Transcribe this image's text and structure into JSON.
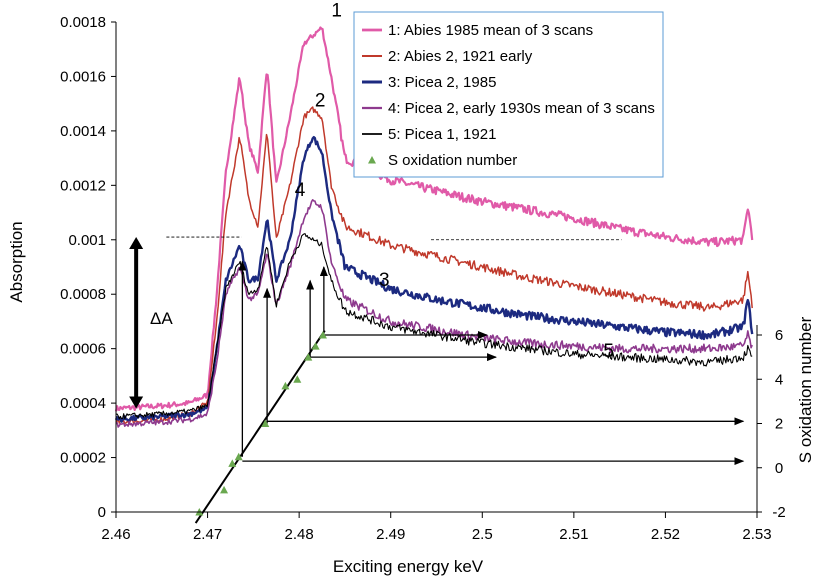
{
  "chart_data": {
    "type": "line",
    "xlabel": "Exciting energy keV",
    "ylabel": "Absorption",
    "y2label": "S oxidation number",
    "xlim": [
      2.46,
      2.53
    ],
    "ylim": [
      0,
      0.0018
    ],
    "y2lim": [
      -2,
      7
    ],
    "x_ticks": [
      "2.46",
      "2.47",
      "2.48",
      "2.49",
      "2.5",
      "2.51",
      "2.52",
      "2.53"
    ],
    "y_ticks": [
      "0",
      "0.0002",
      "0.0004",
      "0.0006",
      "0.0008",
      "0.001",
      "0.0012",
      "0.0014",
      "0.0016",
      "0.0018"
    ],
    "y2_ticks": [
      "-2",
      "0",
      "2",
      "4",
      "6"
    ],
    "legend_position": "top-right",
    "series": [
      {
        "name": "1: Abies 1985 mean of 3 scans",
        "label": "1",
        "color": "#e05aa8",
        "width": 2.2,
        "x": [
          2.46,
          2.465,
          2.468,
          2.47,
          2.471,
          2.472,
          2.4735,
          2.4745,
          2.4755,
          2.4765,
          2.4775,
          2.479,
          2.4805,
          2.4815,
          2.4825,
          2.4835,
          2.485,
          2.49,
          2.495,
          2.5,
          2.505,
          2.51,
          2.515,
          2.52,
          2.525,
          2.5285,
          2.529,
          2.5295
        ],
        "y": [
          0.00038,
          0.00039,
          0.0004,
          0.00043,
          0.0008,
          0.00125,
          0.0016,
          0.00135,
          0.00125,
          0.00164,
          0.0012,
          0.00145,
          0.00172,
          0.00175,
          0.00178,
          0.0016,
          0.0013,
          0.00122,
          0.00118,
          0.00114,
          0.00111,
          0.00108,
          0.00104,
          0.00101,
          0.00099,
          0.001,
          0.00112,
          0.00101
        ]
      },
      {
        "name": "2: Abies 2, 1921 early",
        "label": "2",
        "color": "#c0392b",
        "width": 1.5,
        "x": [
          2.46,
          2.465,
          2.468,
          2.47,
          2.471,
          2.472,
          2.4735,
          2.4745,
          2.4755,
          2.4765,
          2.4775,
          2.479,
          2.4805,
          2.4815,
          2.4825,
          2.4835,
          2.485,
          2.49,
          2.495,
          2.5,
          2.505,
          2.51,
          2.515,
          2.52,
          2.525,
          2.5285,
          2.529,
          2.5295
        ],
        "y": [
          0.00033,
          0.00034,
          0.00036,
          0.0004,
          0.0007,
          0.0011,
          0.00138,
          0.00115,
          0.00105,
          0.0014,
          0.001,
          0.0012,
          0.00145,
          0.00148,
          0.00145,
          0.0012,
          0.00105,
          0.00098,
          0.00094,
          0.0009,
          0.00086,
          0.00083,
          0.0008,
          0.00077,
          0.00075,
          0.00078,
          0.00088,
          0.00076
        ]
      },
      {
        "name": "3: Picea 2, 1985",
        "label": "3",
        "color": "#1c2a80",
        "width": 2.4,
        "x": [
          2.46,
          2.465,
          2.468,
          2.47,
          2.471,
          2.472,
          2.4735,
          2.4745,
          2.4755,
          2.4765,
          2.4775,
          2.479,
          2.4805,
          2.4815,
          2.4825,
          2.4835,
          2.485,
          2.49,
          2.495,
          2.5,
          2.505,
          2.51,
          2.515,
          2.52,
          2.525,
          2.5285,
          2.529,
          2.5295
        ],
        "y": [
          0.00034,
          0.00035,
          0.00036,
          0.00038,
          0.0006,
          0.00085,
          0.00098,
          0.00085,
          0.00086,
          0.00108,
          0.00085,
          0.001,
          0.0013,
          0.00138,
          0.00132,
          0.0011,
          0.0009,
          0.00082,
          0.00078,
          0.00075,
          0.00072,
          0.0007,
          0.00068,
          0.00066,
          0.00065,
          0.00068,
          0.00078,
          0.00066
        ]
      },
      {
        "name": "4: Picea 2, early 1930s mean of 3 scans",
        "label": "4",
        "color": "#8e3a8e",
        "width": 1.6,
        "x": [
          2.46,
          2.465,
          2.468,
          2.47,
          2.471,
          2.472,
          2.4735,
          2.4745,
          2.4755,
          2.4765,
          2.4775,
          2.479,
          2.4805,
          2.4815,
          2.4825,
          2.4835,
          2.485,
          2.49,
          2.495,
          2.5,
          2.505,
          2.51,
          2.515,
          2.52,
          2.525,
          2.5285,
          2.529,
          2.5295
        ],
        "y": [
          0.00032,
          0.00033,
          0.00034,
          0.00036,
          0.00055,
          0.0008,
          0.0009,
          0.00078,
          0.0008,
          0.00095,
          0.00076,
          0.0009,
          0.00108,
          0.00114,
          0.00112,
          0.00092,
          0.00078,
          0.0007,
          0.00067,
          0.00064,
          0.00062,
          0.00061,
          0.0006,
          0.0006,
          0.0006,
          0.00061,
          0.00065,
          0.0006
        ]
      },
      {
        "name": "5: Picea 1, 1921",
        "label": "5",
        "color": "#000000",
        "width": 1.1,
        "x": [
          2.46,
          2.465,
          2.468,
          2.47,
          2.471,
          2.472,
          2.4735,
          2.4745,
          2.4755,
          2.4765,
          2.4775,
          2.479,
          2.4805,
          2.4815,
          2.4825,
          2.4835,
          2.485,
          2.49,
          2.495,
          2.5,
          2.505,
          2.51,
          2.515,
          2.52,
          2.525,
          2.5285,
          2.529,
          2.5295
        ],
        "y": [
          0.00035,
          0.00036,
          0.00037,
          0.00039,
          0.0006,
          0.00082,
          0.00092,
          0.0008,
          0.00082,
          0.00098,
          0.00076,
          0.00092,
          0.00102,
          0.001,
          0.00098,
          0.00085,
          0.00074,
          0.00068,
          0.00065,
          0.00062,
          0.0006,
          0.00058,
          0.00057,
          0.00056,
          0.00055,
          0.00057,
          0.0006,
          0.00056
        ]
      }
    ],
    "oxidation_points": {
      "name": "S oxidation number",
      "color": "#6aa84f",
      "x": [
        2.4691,
        2.4718,
        2.4727,
        2.4734,
        2.4763,
        2.4785,
        2.4798,
        2.481,
        2.4818,
        2.4826
      ],
      "y": [
        -2,
        -1,
        0.2,
        0.5,
        2,
        3.7,
        4,
        5,
        5.5,
        6
      ]
    },
    "annotation": {
      "delta_label": "ΔA",
      "delta_from": 0.00038,
      "delta_to": 0.00101
    }
  }
}
